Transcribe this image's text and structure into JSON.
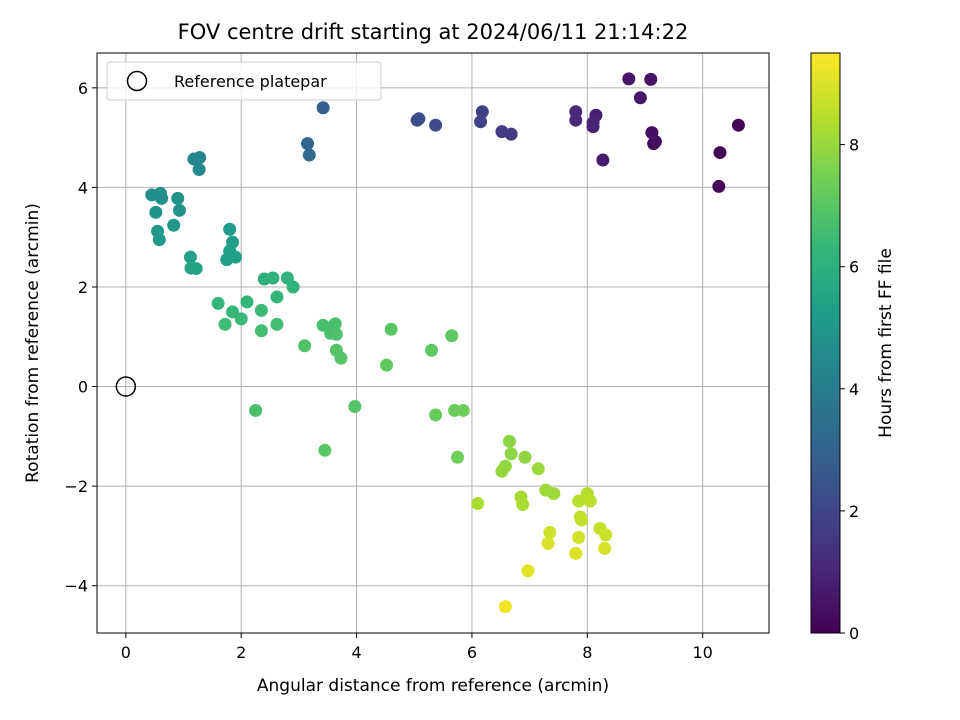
{
  "chart_data": {
    "type": "scatter",
    "title": "FOV centre drift starting at 2024/06/11 21:14:22",
    "xlabel": "Angular distance from reference (arcmin)",
    "ylabel": "Rotation from reference (arcmin)",
    "xlim": [
      -0.5,
      11.15
    ],
    "ylim": [
      -4.95,
      6.7
    ],
    "xticks": [
      0,
      2,
      4,
      6,
      8,
      10
    ],
    "yticks": [
      -4,
      -2,
      0,
      2,
      4,
      6
    ],
    "grid": true,
    "legend": {
      "location": "upper-left",
      "entries": [
        "Reference platepar"
      ]
    },
    "reference_point": {
      "x": 0,
      "y": 0
    },
    "colorbar": {
      "label": "Hours from first FF file",
      "range": [
        0,
        9.5
      ],
      "ticks": [
        0,
        2,
        4,
        6,
        8
      ],
      "colormap": "viridis"
    },
    "points": [
      {
        "x": 10.62,
        "y": 5.25,
        "t": 0.05
      },
      {
        "x": 10.3,
        "y": 4.7,
        "t": 0.1
      },
      {
        "x": 10.28,
        "y": 4.02,
        "t": 0.15
      },
      {
        "x": 9.18,
        "y": 4.92,
        "t": 0.3
      },
      {
        "x": 9.15,
        "y": 4.88,
        "t": 0.33
      },
      {
        "x": 9.12,
        "y": 5.1,
        "t": 0.4
      },
      {
        "x": 9.1,
        "y": 6.17,
        "t": 0.5
      },
      {
        "x": 8.72,
        "y": 6.18,
        "t": 0.55
      },
      {
        "x": 8.92,
        "y": 5.8,
        "t": 0.62
      },
      {
        "x": 8.27,
        "y": 4.55,
        "t": 0.75
      },
      {
        "x": 8.15,
        "y": 5.45,
        "t": 0.85
      },
      {
        "x": 8.1,
        "y": 5.22,
        "t": 0.9
      },
      {
        "x": 8.1,
        "y": 5.3,
        "t": 0.95
      },
      {
        "x": 7.8,
        "y": 5.52,
        "t": 1.05
      },
      {
        "x": 7.8,
        "y": 5.35,
        "t": 1.1
      },
      {
        "x": 6.68,
        "y": 5.07,
        "t": 1.6
      },
      {
        "x": 6.52,
        "y": 5.12,
        "t": 1.7
      },
      {
        "x": 6.18,
        "y": 5.52,
        "t": 1.8
      },
      {
        "x": 6.15,
        "y": 5.32,
        "t": 1.9
      },
      {
        "x": 5.37,
        "y": 5.25,
        "t": 2.1
      },
      {
        "x": 5.08,
        "y": 5.38,
        "t": 2.2
      },
      {
        "x": 5.05,
        "y": 5.35,
        "t": 2.25
      },
      {
        "x": 3.42,
        "y": 5.6,
        "t": 2.9
      },
      {
        "x": 3.15,
        "y": 4.88,
        "t": 3.1
      },
      {
        "x": 3.18,
        "y": 4.65,
        "t": 3.2
      },
      {
        "x": 1.28,
        "y": 4.6,
        "t": 4.3
      },
      {
        "x": 1.18,
        "y": 4.57,
        "t": 4.4
      },
      {
        "x": 1.27,
        "y": 4.36,
        "t": 4.5
      },
      {
        "x": 0.45,
        "y": 3.85,
        "t": 4.7
      },
      {
        "x": 0.6,
        "y": 3.88,
        "t": 4.75
      },
      {
        "x": 0.62,
        "y": 3.78,
        "t": 4.8
      },
      {
        "x": 0.9,
        "y": 3.78,
        "t": 4.85
      },
      {
        "x": 0.93,
        "y": 3.54,
        "t": 4.9
      },
      {
        "x": 0.52,
        "y": 3.5,
        "t": 4.95
      },
      {
        "x": 0.83,
        "y": 3.24,
        "t": 5.0
      },
      {
        "x": 0.55,
        "y": 3.12,
        "t": 5.05
      },
      {
        "x": 0.58,
        "y": 2.95,
        "t": 5.1
      },
      {
        "x": 1.8,
        "y": 3.16,
        "t": 5.15
      },
      {
        "x": 1.85,
        "y": 2.9,
        "t": 5.2
      },
      {
        "x": 1.8,
        "y": 2.72,
        "t": 5.25
      },
      {
        "x": 1.75,
        "y": 2.55,
        "t": 5.3
      },
      {
        "x": 1.9,
        "y": 2.6,
        "t": 5.35
      },
      {
        "x": 1.12,
        "y": 2.6,
        "t": 5.4
      },
      {
        "x": 1.13,
        "y": 2.38,
        "t": 5.45
      },
      {
        "x": 1.22,
        "y": 2.37,
        "t": 5.5
      },
      {
        "x": 2.4,
        "y": 2.16,
        "t": 6.0
      },
      {
        "x": 2.55,
        "y": 2.18,
        "t": 6.05
      },
      {
        "x": 2.8,
        "y": 2.18,
        "t": 6.1
      },
      {
        "x": 2.9,
        "y": 2.0,
        "t": 6.15
      },
      {
        "x": 2.62,
        "y": 1.8,
        "t": 6.2
      },
      {
        "x": 2.1,
        "y": 1.7,
        "t": 6.25
      },
      {
        "x": 1.6,
        "y": 1.67,
        "t": 6.3
      },
      {
        "x": 1.85,
        "y": 1.5,
        "t": 6.35
      },
      {
        "x": 2.0,
        "y": 1.36,
        "t": 6.4
      },
      {
        "x": 2.35,
        "y": 1.53,
        "t": 6.45
      },
      {
        "x": 1.72,
        "y": 1.25,
        "t": 6.5
      },
      {
        "x": 2.62,
        "y": 1.25,
        "t": 6.55
      },
      {
        "x": 2.35,
        "y": 1.12,
        "t": 6.6
      },
      {
        "x": 3.42,
        "y": 1.23,
        "t": 6.65
      },
      {
        "x": 3.63,
        "y": 1.26,
        "t": 6.7
      },
      {
        "x": 3.55,
        "y": 1.07,
        "t": 6.75
      },
      {
        "x": 3.65,
        "y": 1.05,
        "t": 6.8
      },
      {
        "x": 3.1,
        "y": 0.82,
        "t": 6.85
      },
      {
        "x": 3.65,
        "y": 0.73,
        "t": 6.9
      },
      {
        "x": 3.73,
        "y": 0.57,
        "t": 6.95
      },
      {
        "x": 4.6,
        "y": 1.15,
        "t": 7.0
      },
      {
        "x": 5.65,
        "y": 1.02,
        "t": 7.05
      },
      {
        "x": 5.3,
        "y": 0.73,
        "t": 7.1
      },
      {
        "x": 4.52,
        "y": 0.43,
        "t": 7.15
      },
      {
        "x": 2.25,
        "y": -0.48,
        "t": 6.7
      },
      {
        "x": 3.97,
        "y": -0.4,
        "t": 6.9
      },
      {
        "x": 3.45,
        "y": -1.28,
        "t": 7.0
      },
      {
        "x": 5.37,
        "y": -0.57,
        "t": 7.25
      },
      {
        "x": 5.7,
        "y": -0.48,
        "t": 7.3
      },
      {
        "x": 5.85,
        "y": -0.48,
        "t": 7.35
      },
      {
        "x": 5.75,
        "y": -1.42,
        "t": 7.4
      },
      {
        "x": 6.65,
        "y": -1.1,
        "t": 7.8
      },
      {
        "x": 6.68,
        "y": -1.35,
        "t": 7.85
      },
      {
        "x": 6.92,
        "y": -1.42,
        "t": 7.9
      },
      {
        "x": 6.58,
        "y": -1.6,
        "t": 7.95
      },
      {
        "x": 6.52,
        "y": -1.7,
        "t": 8.0
      },
      {
        "x": 7.15,
        "y": -1.65,
        "t": 8.05
      },
      {
        "x": 7.28,
        "y": -2.08,
        "t": 8.1
      },
      {
        "x": 7.42,
        "y": -2.15,
        "t": 8.15
      },
      {
        "x": 6.85,
        "y": -2.22,
        "t": 8.2
      },
      {
        "x": 6.88,
        "y": -2.37,
        "t": 8.25
      },
      {
        "x": 6.1,
        "y": -2.35,
        "t": 8.3
      },
      {
        "x": 8.0,
        "y": -2.15,
        "t": 8.4
      },
      {
        "x": 7.85,
        "y": -2.3,
        "t": 8.5
      },
      {
        "x": 8.05,
        "y": -2.3,
        "t": 8.55
      },
      {
        "x": 7.88,
        "y": -2.62,
        "t": 8.6
      },
      {
        "x": 7.9,
        "y": -2.68,
        "t": 8.65
      },
      {
        "x": 8.22,
        "y": -2.85,
        "t": 8.7
      },
      {
        "x": 8.32,
        "y": -2.98,
        "t": 8.75
      },
      {
        "x": 7.35,
        "y": -2.93,
        "t": 8.8
      },
      {
        "x": 7.85,
        "y": -3.03,
        "t": 8.85
      },
      {
        "x": 8.3,
        "y": -3.25,
        "t": 8.9
      },
      {
        "x": 7.32,
        "y": -3.15,
        "t": 8.95
      },
      {
        "x": 7.8,
        "y": -3.35,
        "t": 9.0
      },
      {
        "x": 6.97,
        "y": -3.7,
        "t": 9.1
      },
      {
        "x": 6.58,
        "y": -4.42,
        "t": 9.3
      }
    ]
  }
}
